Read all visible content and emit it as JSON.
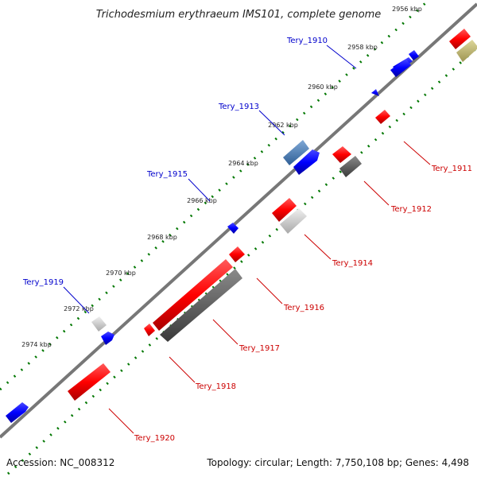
{
  "title": "Trichodesmium erythraeum IMS101, complete genome",
  "ticks": [
    "2956 kbp",
    "2958 kbp",
    "2960 kbp",
    "2962 kbp",
    "2964 kbp",
    "2966 kbp",
    "2968 kbp",
    "2970 kbp",
    "2972 kbp",
    "2974 kbp"
  ],
  "genes_forward": [
    "Tery_1910",
    "Tery_1913",
    "Tery_1915",
    "Tery_1919"
  ],
  "genes_reverse": [
    "Tery_1911",
    "Tery_1912",
    "Tery_1914",
    "Tery_1916",
    "Tery_1917",
    "Tery_1918",
    "Tery_1920"
  ],
  "footer": {
    "accession": "Accession: NC_008312",
    "summary": "Topology: circular; Length: 7,750,108 bp; Genes: 4,498"
  },
  "colors": {
    "forward_cds": "#0000ff",
    "reverse_cds": "#ff0000",
    "gc_light": "#cccccc",
    "gc_dark": "#555555",
    "backbone": "#777777",
    "dots": "#007700",
    "label_forward": "#0000cc",
    "label_reverse": "#cc0000"
  }
}
